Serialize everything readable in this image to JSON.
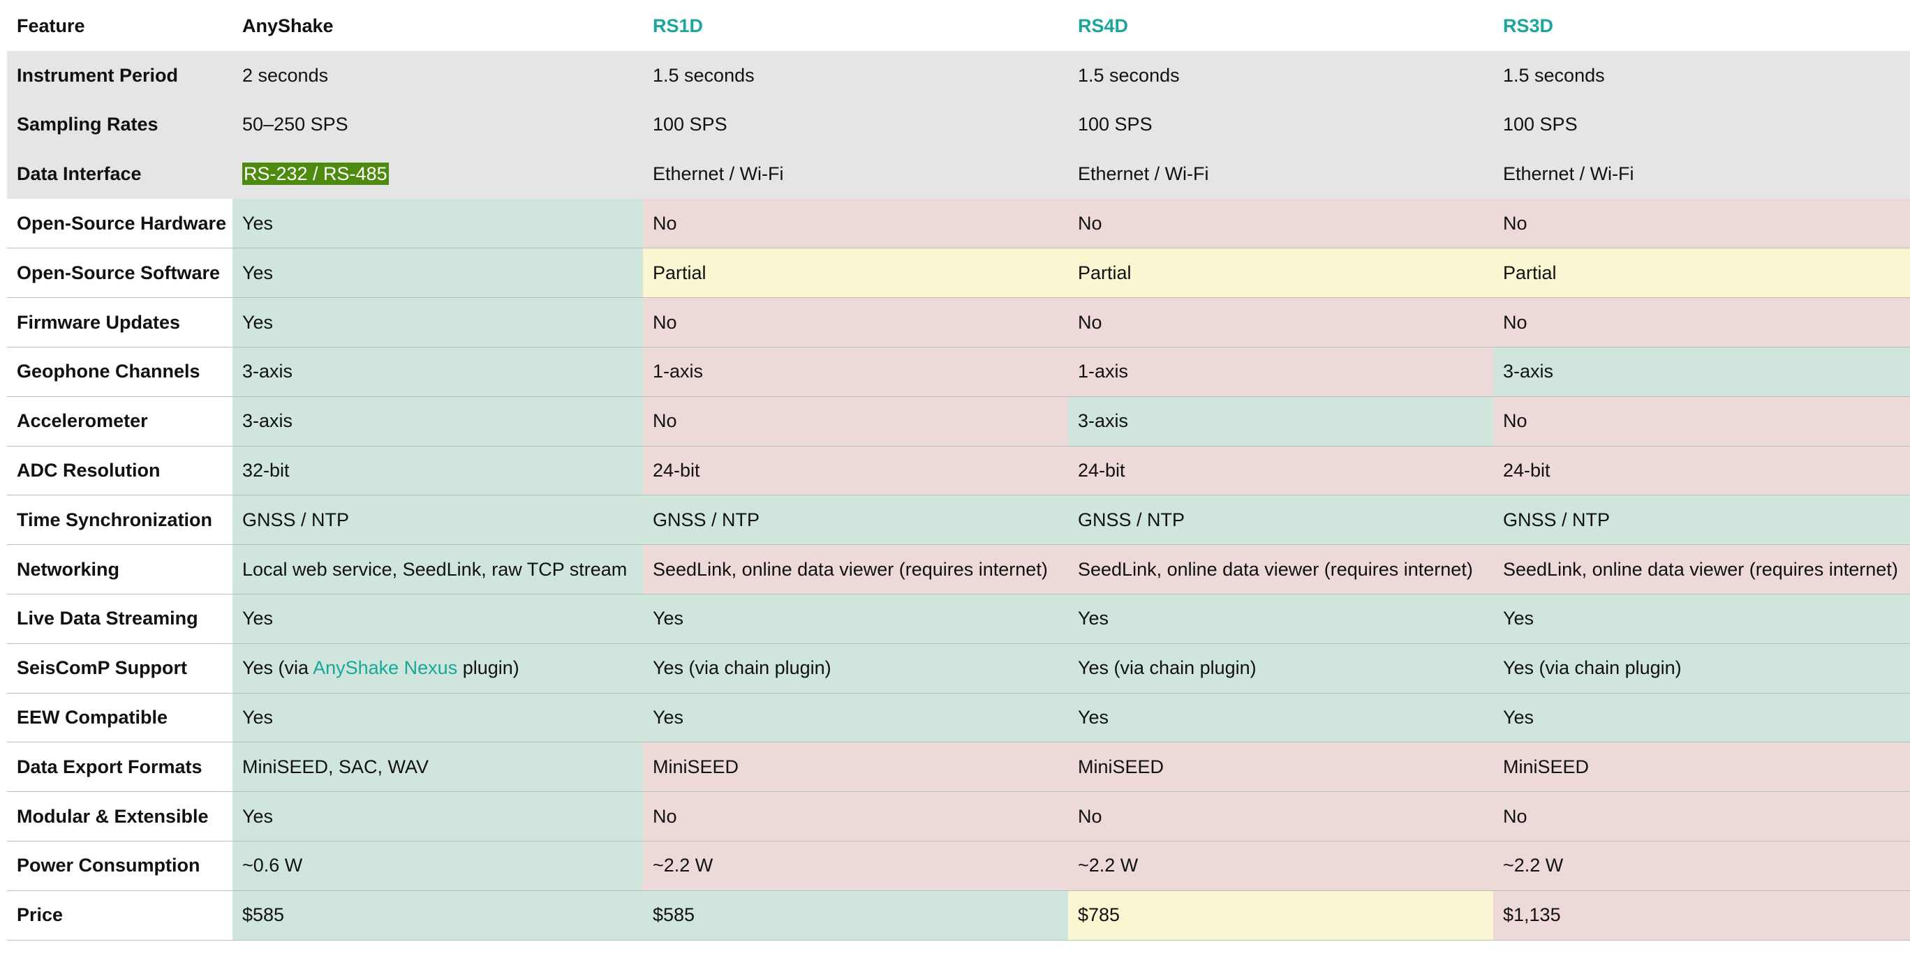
{
  "header": {
    "feature": "Feature",
    "col0": "AnyShake",
    "col1": "RS1D",
    "col2": "RS4D",
    "col3": "RS3D"
  },
  "colors": {
    "gray": "#e5e5e5",
    "green": "#d0e6dd",
    "red": "#eed9d9",
    "yellow": "#faf6d1",
    "link": "#1aa79a",
    "highlight": "#4f8a10"
  },
  "rows": [
    {
      "feature": "Instrument Period",
      "cells": [
        {
          "text": "2 seconds",
          "status": "gray"
        },
        {
          "text": "1.5 seconds",
          "status": "gray"
        },
        {
          "text": "1.5 seconds",
          "status": "gray"
        },
        {
          "text": "1.5 seconds",
          "status": "gray"
        }
      ]
    },
    {
      "feature": "Sampling Rates",
      "cells": [
        {
          "text": "50–250 SPS",
          "status": "gray"
        },
        {
          "text": "100 SPS",
          "status": "gray"
        },
        {
          "text": "100 SPS",
          "status": "gray"
        },
        {
          "text": "100 SPS",
          "status": "gray"
        }
      ]
    },
    {
      "feature": "Data Interface",
      "cells": [
        {
          "text": "RS-232 / RS-485",
          "status": "gray",
          "highlighted": true
        },
        {
          "text": "Ethernet / Wi-Fi",
          "status": "gray"
        },
        {
          "text": "Ethernet / Wi-Fi",
          "status": "gray"
        },
        {
          "text": "Ethernet / Wi-Fi",
          "status": "gray"
        }
      ]
    },
    {
      "feature": "Open-Source Hardware",
      "cells": [
        {
          "text": "Yes",
          "status": "green"
        },
        {
          "text": "No",
          "status": "red"
        },
        {
          "text": "No",
          "status": "red"
        },
        {
          "text": "No",
          "status": "red"
        }
      ]
    },
    {
      "feature": "Open-Source Software",
      "cells": [
        {
          "text": "Yes",
          "status": "green"
        },
        {
          "text": "Partial",
          "status": "yellow"
        },
        {
          "text": "Partial",
          "status": "yellow"
        },
        {
          "text": "Partial",
          "status": "yellow"
        }
      ]
    },
    {
      "feature": "Firmware Updates",
      "cells": [
        {
          "text": "Yes",
          "status": "green"
        },
        {
          "text": "No",
          "status": "red"
        },
        {
          "text": "No",
          "status": "red"
        },
        {
          "text": "No",
          "status": "red"
        }
      ]
    },
    {
      "feature": "Geophone Channels",
      "cells": [
        {
          "text": "3-axis",
          "status": "green"
        },
        {
          "text": "1-axis",
          "status": "red"
        },
        {
          "text": "1-axis",
          "status": "red"
        },
        {
          "text": "3-axis",
          "status": "green"
        }
      ]
    },
    {
      "feature": "Accelerometer",
      "cells": [
        {
          "text": "3-axis",
          "status": "green"
        },
        {
          "text": "No",
          "status": "red"
        },
        {
          "text": "3-axis",
          "status": "green"
        },
        {
          "text": "No",
          "status": "red"
        }
      ]
    },
    {
      "feature": "ADC Resolution",
      "cells": [
        {
          "text": "32-bit",
          "status": "green"
        },
        {
          "text": "24-bit",
          "status": "red"
        },
        {
          "text": "24-bit",
          "status": "red"
        },
        {
          "text": "24-bit",
          "status": "red"
        }
      ]
    },
    {
      "feature": "Time Synchronization",
      "cells": [
        {
          "text": "GNSS / NTP",
          "status": "green"
        },
        {
          "text": "GNSS / NTP",
          "status": "green"
        },
        {
          "text": "GNSS / NTP",
          "status": "green"
        },
        {
          "text": "GNSS / NTP",
          "status": "green"
        }
      ]
    },
    {
      "feature": "Networking",
      "cells": [
        {
          "text": "Local web service, SeedLink, raw TCP stream",
          "status": "green"
        },
        {
          "text": "SeedLink, online data viewer (requires internet)",
          "status": "red"
        },
        {
          "text": "SeedLink, online data viewer (requires internet)",
          "status": "red"
        },
        {
          "text": "SeedLink, online data viewer (requires internet)",
          "status": "red"
        }
      ]
    },
    {
      "feature": "Live Data Streaming",
      "cells": [
        {
          "text": "Yes",
          "status": "green"
        },
        {
          "text": "Yes",
          "status": "green"
        },
        {
          "text": "Yes",
          "status": "green"
        },
        {
          "text": "Yes",
          "status": "green"
        }
      ]
    },
    {
      "feature": "SeisComP Support",
      "cells": [
        {
          "pre": "Yes (via ",
          "link": "AnyShake Nexus",
          "post": " plugin)",
          "status": "green"
        },
        {
          "text": "Yes (via chain plugin)",
          "status": "green"
        },
        {
          "text": "Yes (via chain plugin)",
          "status": "green"
        },
        {
          "text": "Yes (via chain plugin)",
          "status": "green"
        }
      ]
    },
    {
      "feature": "EEW Compatible",
      "cells": [
        {
          "text": "Yes",
          "status": "green"
        },
        {
          "text": "Yes",
          "status": "green"
        },
        {
          "text": "Yes",
          "status": "green"
        },
        {
          "text": "Yes",
          "status": "green"
        }
      ]
    },
    {
      "feature": "Data Export Formats",
      "cells": [
        {
          "text": "MiniSEED, SAC, WAV",
          "status": "green"
        },
        {
          "text": "MiniSEED",
          "status": "red"
        },
        {
          "text": "MiniSEED",
          "status": "red"
        },
        {
          "text": "MiniSEED",
          "status": "red"
        }
      ]
    },
    {
      "feature": "Modular & Extensible",
      "cells": [
        {
          "text": "Yes",
          "status": "green"
        },
        {
          "text": "No",
          "status": "red"
        },
        {
          "text": "No",
          "status": "red"
        },
        {
          "text": "No",
          "status": "red"
        }
      ]
    },
    {
      "feature": "Power Consumption",
      "cells": [
        {
          "text": "~0.6 W",
          "status": "green"
        },
        {
          "text": "~2.2 W",
          "status": "red"
        },
        {
          "text": "~2.2 W",
          "status": "red"
        },
        {
          "text": "~2.2 W",
          "status": "red"
        }
      ]
    },
    {
      "feature": "Price",
      "cells": [
        {
          "text": "$585",
          "status": "green"
        },
        {
          "text": "$585",
          "status": "green"
        },
        {
          "text": "$785",
          "status": "yellow"
        },
        {
          "text": "$1,135",
          "status": "red"
        }
      ]
    }
  ]
}
